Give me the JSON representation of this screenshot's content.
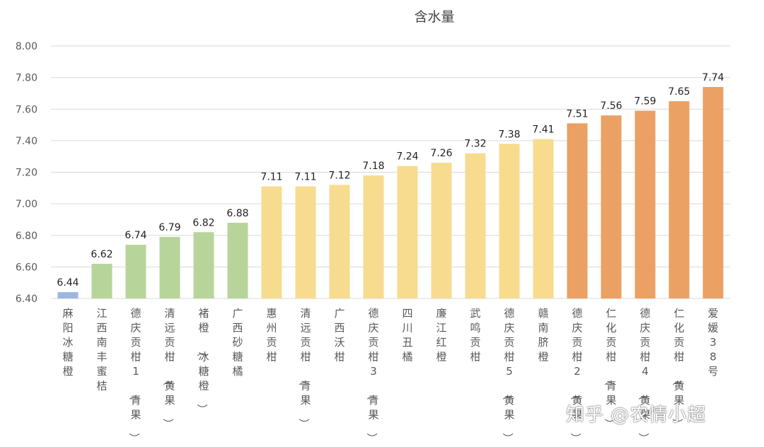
{
  "chart_data": {
    "type": "bar",
    "title": "含水量",
    "ylim": [
      6.4,
      8.0
    ],
    "yticks": [
      "6.40",
      "6.60",
      "6.80",
      "7.00",
      "7.20",
      "7.40",
      "7.60",
      "7.80",
      "8.00"
    ],
    "grid": true,
    "categories": [
      "麻阳冰糖橙",
      "江西南丰蜜桔",
      "德庆贡柑1（青果）",
      "清远贡柑（黄果）",
      "褚橙（冰糖橙）",
      "广西砂糖橘",
      "惠州贡柑",
      "清远贡柑（青果）",
      "广西沃柑",
      "德庆贡柑3（青果）",
      "四川丑橘",
      "廉江红橙",
      "武鸣贡柑",
      "德庆贡柑5（黄果）",
      "赣南脐橙",
      "德庆贡柑2（黄果）",
      "仁化贡柑（青果）",
      "德庆贡柑4（黄果）",
      "仁化贡柑（黄果）",
      "爱媛38号"
    ],
    "values": [
      6.44,
      6.62,
      6.74,
      6.79,
      6.82,
      6.88,
      7.11,
      7.11,
      7.12,
      7.18,
      7.24,
      7.26,
      7.32,
      7.38,
      7.41,
      7.51,
      7.56,
      7.59,
      7.65,
      7.74
    ],
    "data_labels": [
      "6.44",
      "6.62",
      "6.74",
      "6.79",
      "6.82",
      "6.88",
      "7.11",
      "7.11",
      "7.12",
      "7.18",
      "7.24",
      "7.26",
      "7.32",
      "7.38",
      "7.41",
      "7.51",
      "7.56",
      "7.59",
      "7.65",
      "7.74"
    ],
    "bar_colors": [
      "#9fb6dc",
      "#b7d59a",
      "#b7d59a",
      "#b7d59a",
      "#b7d59a",
      "#b7d59a",
      "#f7dc8f",
      "#f7dc8f",
      "#f7dc8f",
      "#f7dc8f",
      "#f7dc8f",
      "#f7dc8f",
      "#f7dc8f",
      "#f7dc8f",
      "#f7dc8f",
      "#eba064",
      "#eba064",
      "#eba064",
      "#eba064",
      "#eba064"
    ]
  },
  "watermark": "知乎 @农情小超"
}
